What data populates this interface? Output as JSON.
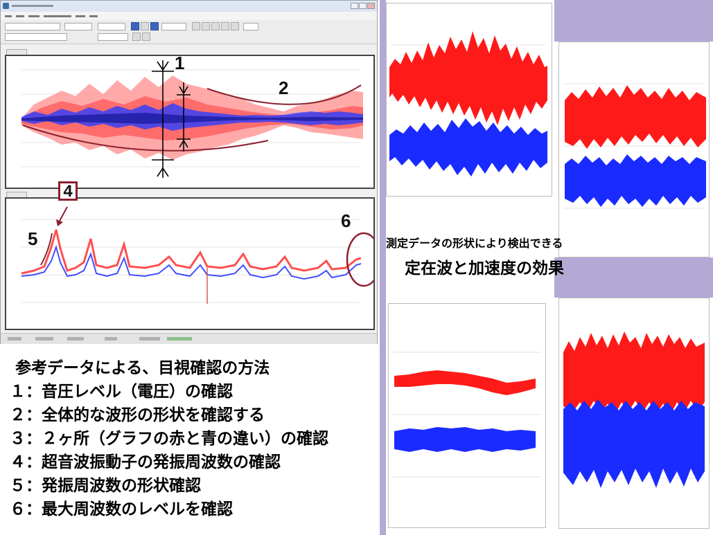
{
  "colors": {
    "red": "#ff1a1a",
    "blue": "#1a2bff",
    "dark_red": "#8b1f2e",
    "lavender": "#b4a8d4"
  },
  "callouts": {
    "c1": "1",
    "c2": "2",
    "c4": "4",
    "c5": "5",
    "c6": "6"
  },
  "mid_caption": {
    "line1": "測定データの形状により検出できる",
    "line2": "定在波と加速度の効果"
  },
  "legend": {
    "heading": "参考データによる、目視確認の方法",
    "items": [
      "１：音圧レベル（電圧）の確認",
      "２：全体的な波形の形状を確認する",
      "３：２ヶ所（グラフの赤と青の違い）の確認",
      "４：超音波振動子の発振周波数の確認",
      "５：発振周波数の形状確認",
      "６：最大周波数のレベルを確認"
    ]
  }
}
